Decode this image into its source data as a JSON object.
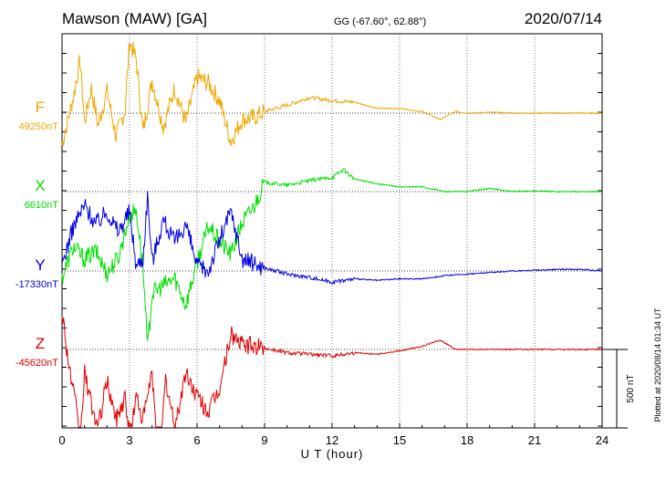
{
  "header": {
    "station": "Mawson (MAW)  [GA]",
    "coords": "GG (-67.60°,  62.88°)",
    "date": "2020/07/14"
  },
  "footer_note": "Plotted at 2020/08/14 01:34  UT",
  "colors": {
    "F": "#f0a800",
    "X": "#00e000",
    "Y": "#0000e0",
    "Z": "#e00000",
    "axis": "#000000"
  },
  "chart_data": {
    "type": "line",
    "title": "Mawson (MAW)  [GA]",
    "xlabel": "U T (hour)",
    "xlim": [
      0,
      24
    ],
    "xticks": [
      0,
      3,
      6,
      9,
      12,
      15,
      18,
      21,
      24
    ],
    "scale_bar": "500 nT",
    "grid": "dotted vertical every 3 h",
    "series": [
      {
        "name": "F",
        "baseline_label": "49250nT",
        "color": "#f0a800",
        "x": [
          0,
          0.5,
          0.8,
          1.0,
          1.3,
          1.6,
          2.0,
          2.4,
          2.8,
          3.0,
          3.3,
          3.6,
          4.0,
          4.5,
          5.0,
          5.5,
          6.0,
          6.5,
          7.0,
          7.5,
          8.0,
          8.5,
          9.0,
          10,
          11,
          12,
          13,
          14,
          15,
          16,
          16.8,
          17.5,
          18,
          19,
          20,
          21,
          22,
          23,
          24
        ],
        "y": [
          -200,
          100,
          340,
          -60,
          160,
          -80,
          140,
          -150,
          20,
          460,
          340,
          -120,
          210,
          -90,
          160,
          -60,
          230,
          190,
          80,
          -180,
          -40,
          -30,
          10,
          50,
          100,
          80,
          70,
          30,
          30,
          10,
          -40,
          10,
          0,
          5,
          0,
          0,
          0,
          0,
          0
        ]
      },
      {
        "name": "X",
        "baseline_label": "6610nT",
        "color": "#00e000",
        "x": [
          0,
          0.5,
          1.0,
          1.5,
          2.0,
          2.5,
          3.0,
          3.3,
          3.6,
          3.8,
          4.0,
          4.5,
          5.0,
          5.5,
          6.0,
          6.5,
          7.0,
          7.5,
          8.0,
          8.5,
          9.0,
          10,
          11,
          12,
          12.5,
          13,
          14,
          15,
          16,
          17,
          18,
          19,
          20,
          21,
          22,
          23,
          24
        ],
        "y": [
          -550,
          -350,
          -430,
          -380,
          -520,
          -420,
          -150,
          -120,
          -480,
          -1000,
          -650,
          -600,
          -550,
          -720,
          -450,
          -220,
          -320,
          -400,
          -200,
          -100,
          60,
          40,
          70,
          90,
          140,
          80,
          50,
          30,
          30,
          0,
          0,
          20,
          0,
          5,
          0,
          0,
          0
        ]
      },
      {
        "name": "Y",
        "baseline_label": "-17330nT",
        "color": "#0000e0",
        "x": [
          0,
          0.5,
          1.0,
          1.5,
          2.0,
          2.5,
          3.0,
          3.3,
          3.6,
          3.8,
          4.0,
          4.5,
          5.0,
          5.5,
          6.0,
          6.5,
          7.0,
          7.5,
          8.0,
          8.5,
          9.0,
          10,
          11,
          12,
          13,
          14,
          15,
          16,
          17,
          18,
          19,
          20,
          21,
          22,
          23,
          24
        ],
        "y": [
          40,
          280,
          420,
          300,
          380,
          250,
          380,
          30,
          80,
          480,
          60,
          330,
          180,
          300,
          30,
          0,
          200,
          380,
          80,
          50,
          20,
          -20,
          -40,
          -70,
          -50,
          -60,
          -50,
          -50,
          -30,
          -20,
          -10,
          0,
          5,
          10,
          10,
          0
        ]
      },
      {
        "name": "Z",
        "baseline_label": "-45620nT",
        "color": "#e00000",
        "x": [
          0,
          0.3,
          0.6,
          0.8,
          1.0,
          1.3,
          1.6,
          2.0,
          2.4,
          2.8,
          3.0,
          3.3,
          3.6,
          4.0,
          4.3,
          4.6,
          5.0,
          5.5,
          6.0,
          6.5,
          7.0,
          7.5,
          8.0,
          8.5,
          9.0,
          10,
          11,
          12,
          13,
          14,
          15,
          16,
          16.8,
          17.5,
          18,
          19,
          20,
          21,
          22,
          23,
          24
        ],
        "y": [
          250,
          -100,
          -350,
          -600,
          -150,
          -350,
          -500,
          -200,
          -450,
          -300,
          -550,
          -300,
          -450,
          -150,
          -800,
          -200,
          -500,
          -150,
          -300,
          -400,
          -250,
          100,
          30,
          20,
          10,
          -20,
          -30,
          -40,
          -20,
          -30,
          -10,
          20,
          60,
          0,
          0,
          0,
          0,
          0,
          0,
          0,
          0
        ]
      }
    ]
  }
}
